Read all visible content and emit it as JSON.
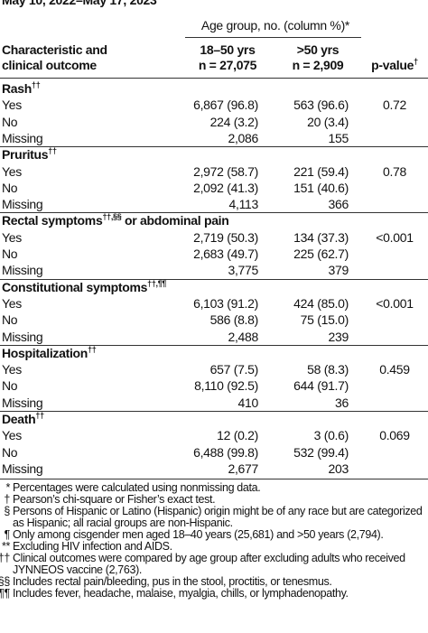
{
  "header": {
    "date_range": "May 10, 2022–May 17, 2023",
    "group_label": "Age group, no. (column %)*",
    "characteristic_line1": "Characteristic and",
    "characteristic_line2": "clinical outcome",
    "col1_line1": "18–50 yrs",
    "col1_line2": "n = 27,075",
    "col2_line1": ">50 yrs",
    "col2_line2": "n = 2,909",
    "pvalue": "p-value",
    "pvalue_sup": "†"
  },
  "sections": [
    {
      "title": "Rash",
      "sup": "††",
      "rows": [
        [
          "Yes",
          "6,867 (96.8)",
          "563 (96.6)",
          "0.72"
        ],
        [
          "No",
          "224 (3.2)",
          "20 (3.4)"
        ],
        [
          "Missing",
          "2,086",
          "155"
        ]
      ]
    },
    {
      "title": "Pruritus",
      "sup": "††",
      "rows": [
        [
          "Yes",
          "2,972 (58.7)",
          "221 (59.4)",
          "0.78"
        ],
        [
          "No",
          "2,092 (41.3)",
          "151 (40.6)"
        ],
        [
          "Missing",
          "4,113",
          "366"
        ]
      ]
    },
    {
      "title": "Rectal symptoms",
      "sup": "††,§§",
      "title_after": " or abdominal pain",
      "rows": [
        [
          "Yes",
          "2,719 (50.3)",
          "134 (37.3)",
          "<0.001"
        ],
        [
          "No",
          "2,683 (49.7)",
          "225 (62.7)"
        ],
        [
          "Missing",
          "3,775",
          "379"
        ]
      ]
    },
    {
      "title": "Constitutional symptoms",
      "sup": "††,¶¶",
      "rows": [
        [
          "Yes",
          "6,103 (91.2)",
          "424 (85.0)",
          "<0.001"
        ],
        [
          "No",
          "586 (8.8)",
          "75 (15.0)"
        ],
        [
          "Missing",
          "2,488",
          "239"
        ]
      ]
    },
    {
      "title": "Hospitalization",
      "sup": "††",
      "rows": [
        [
          "Yes",
          "657 (7.5)",
          "58 (8.3)",
          "0.459"
        ],
        [
          "No",
          "8,110 (92.5)",
          "644 (91.7)"
        ],
        [
          "Missing",
          "410",
          "36"
        ]
      ]
    },
    {
      "title": "Death",
      "sup": "††",
      "rows": [
        [
          "Yes",
          "12 (0.2)",
          "3 (0.6)",
          "0.069"
        ],
        [
          "No",
          "6,488 (99.8)",
          "532 (99.4)"
        ],
        [
          "Missing",
          "2,677",
          "203"
        ]
      ]
    }
  ],
  "footnotes": [
    {
      "mark": "*",
      "text": "Percentages were calculated using nonmissing data."
    },
    {
      "mark": "†",
      "text": "Pearson’s chi-square or Fisher’s exact test."
    },
    {
      "mark": "§",
      "text": "Persons of Hispanic or Latino (Hispanic) origin might be of any race but are categorized as Hispanic; all racial groups are non-Hispanic."
    },
    {
      "mark": "¶",
      "text": "Only among cisgender men aged 18–40 years (25,681) and >50 years (2,794)."
    },
    {
      "mark": "**",
      "text": "Excluding HIV infection and AIDS."
    },
    {
      "mark": "††",
      "text": "Clinical outcomes were compared by age group after excluding adults who received JYNNEOS vaccine (2,763)."
    },
    {
      "mark": "§§",
      "text": "Includes rectal pain/bleeding, pus in the stool, proctitis, or tenesmus."
    },
    {
      "mark": "¶¶",
      "text": "Includes fever, headache, malaise, myalgia, chills, or lymphadenopathy."
    }
  ]
}
